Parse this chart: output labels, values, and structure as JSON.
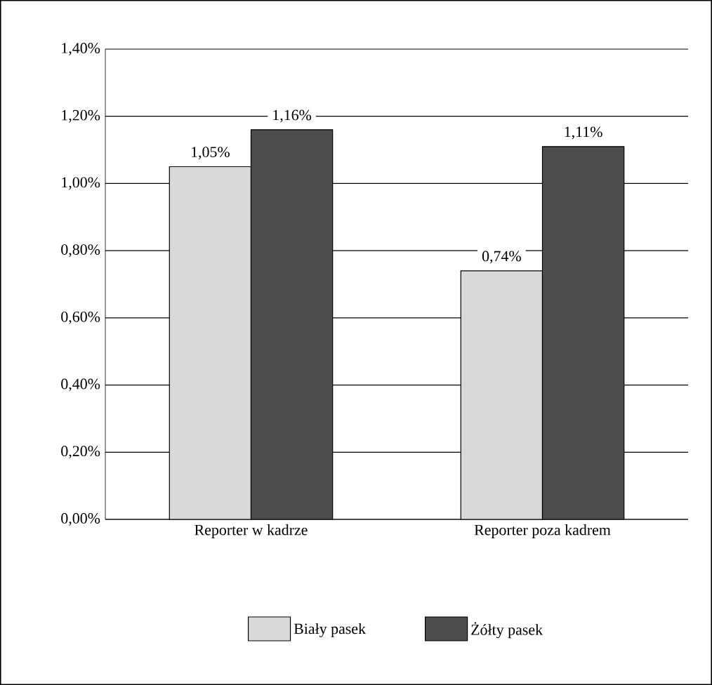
{
  "chart_data": {
    "type": "bar",
    "categories": [
      "Reporter w kadrze",
      "Reporter poza kadrem"
    ],
    "series": [
      {
        "name": "Biały pasek",
        "color": "#d9d9d9",
        "values": [
          1.05,
          0.74
        ],
        "value_labels": [
          "1,05%",
          "0,74%"
        ]
      },
      {
        "name": "Żółty pasek",
        "color": "#4d4d4d",
        "values": [
          1.16,
          1.11
        ],
        "value_labels": [
          "1,16%",
          "1,11%"
        ]
      }
    ],
    "ylim": [
      0,
      1.4
    ],
    "yticks": [
      {
        "value": 0,
        "label": "0,00%"
      },
      {
        "value": 0.2,
        "label": "0,20%"
      },
      {
        "value": 0.4,
        "label": "0,40%"
      },
      {
        "value": 0.6,
        "label": "0,60%"
      },
      {
        "value": 0.8,
        "label": "0,80%"
      },
      {
        "value": 1.0,
        "label": "1,00%"
      },
      {
        "value": 1.2,
        "label": "1,20%"
      },
      {
        "value": 1.4,
        "label": "1,40%"
      }
    ],
    "grid": "y",
    "legend": "bottom"
  }
}
